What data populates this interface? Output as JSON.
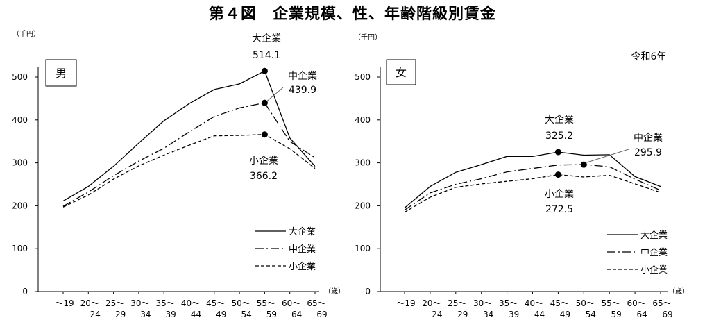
{
  "title": "第４図　企業規模、性、年齢階級別賃金",
  "note": "令和6年",
  "chart_data": [
    {
      "type": "line",
      "panel_label": "男",
      "y_unit": "（千円）",
      "x_unit": "（歳）",
      "ylim": [
        0,
        500
      ],
      "yticks": [
        0,
        100,
        200,
        300,
        400,
        500
      ],
      "categories": [
        {
          "top": "～19",
          "bottom": ""
        },
        {
          "top": "20～",
          "bottom": "24"
        },
        {
          "top": "25～",
          "bottom": "29"
        },
        {
          "top": "30～",
          "bottom": "34"
        },
        {
          "top": "35～",
          "bottom": "39"
        },
        {
          "top": "40～",
          "bottom": "44"
        },
        {
          "top": "45～",
          "bottom": "49"
        },
        {
          "top": "50～",
          "bottom": "54"
        },
        {
          "top": "55～",
          "bottom": "59"
        },
        {
          "top": "60～",
          "bottom": "64"
        },
        {
          "top": "65～",
          "bottom": "69"
        }
      ],
      "series": [
        {
          "name": "大企業",
          "style": "solid",
          "values": [
            211,
            245,
            292,
            346,
            398,
            438,
            471,
            484,
            514.1,
            358,
            292
          ]
        },
        {
          "name": "中企業",
          "style": "dashdot",
          "values": [
            199,
            232,
            270,
            304,
            334,
            372,
            408,
            428,
            439.9,
            350,
            312
          ]
        },
        {
          "name": "小企業",
          "style": "dashed",
          "values": [
            197,
            225,
            262,
            293,
            318,
            341,
            363,
            364,
            366.2,
            333,
            287
          ]
        }
      ],
      "annotations": [
        {
          "series": "大企業",
          "index": 8,
          "name": "大企業",
          "value": "514.1"
        },
        {
          "series": "中企業",
          "index": 8,
          "name": "中企業",
          "value": "439.9"
        },
        {
          "series": "小企業",
          "index": 8,
          "name": "小企業",
          "value": "366.2"
        }
      ]
    },
    {
      "type": "line",
      "panel_label": "女",
      "y_unit": "（千円）",
      "x_unit": "（歳）",
      "ylim": [
        0,
        500
      ],
      "yticks": [
        0,
        100,
        200,
        300,
        400,
        500
      ],
      "categories": [
        {
          "top": "～19",
          "bottom": ""
        },
        {
          "top": "20～",
          "bottom": "24"
        },
        {
          "top": "25～",
          "bottom": "29"
        },
        {
          "top": "30～",
          "bottom": "34"
        },
        {
          "top": "35～",
          "bottom": "39"
        },
        {
          "top": "40～",
          "bottom": "44"
        },
        {
          "top": "45～",
          "bottom": "49"
        },
        {
          "top": "50～",
          "bottom": "54"
        },
        {
          "top": "55～",
          "bottom": "59"
        },
        {
          "top": "60～",
          "bottom": "64"
        },
        {
          "top": "65～",
          "bottom": "69"
        }
      ],
      "series": [
        {
          "name": "大企業",
          "style": "solid",
          "values": [
            195,
            245,
            278,
            296,
            315,
            315,
            325.2,
            318,
            319,
            268,
            245
          ]
        },
        {
          "name": "中企業",
          "style": "dashdot",
          "values": [
            190,
            230,
            250,
            263,
            279,
            287,
            295,
            296,
            291,
            262,
            236
          ]
        },
        {
          "name": "小企業",
          "style": "dashed",
          "values": [
            185,
            220,
            243,
            251,
            257,
            263,
            272.5,
            267,
            271,
            251,
            231
          ]
        }
      ],
      "annotations": [
        {
          "series": "大企業",
          "index": 6,
          "name": "大企業",
          "value": "325.2"
        },
        {
          "series": "中企業",
          "index": 7,
          "name": "中企業",
          "value": "295.9",
          "marker_value": 295.9
        },
        {
          "series": "小企業",
          "index": 6,
          "name": "小企業",
          "value": "272.5"
        }
      ]
    }
  ]
}
